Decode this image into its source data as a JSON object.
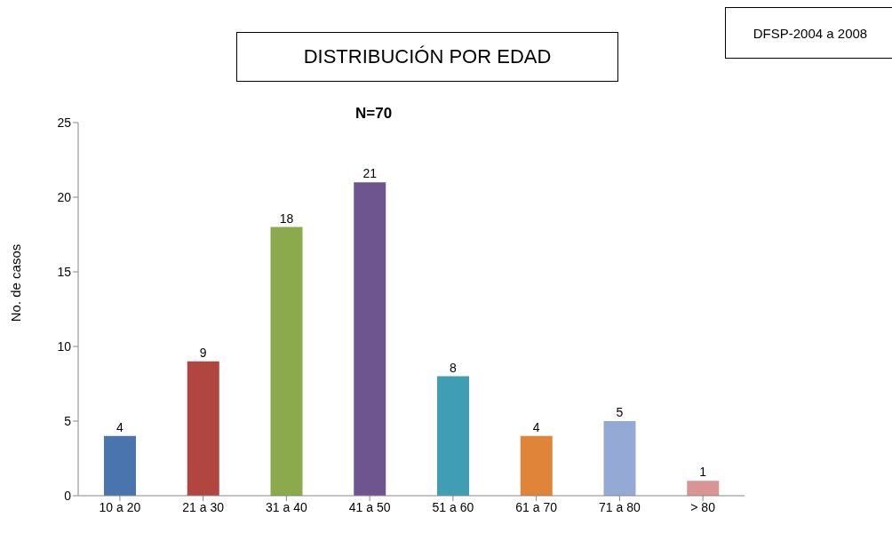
{
  "chart_data": {
    "type": "bar",
    "title": "DISTRIBUCIÓN POR EDAD",
    "subtitle": "N=70",
    "ylabel": "No. de casos",
    "annotations": [
      "DFSP-2004 a 2008"
    ],
    "categories": [
      "10 a 20",
      "21 a 30",
      "31 a 40",
      "41 a 50",
      "51 a 60",
      "61 a 70",
      "71 a 80",
      "> 80"
    ],
    "values": [
      4,
      9,
      18,
      21,
      8,
      4,
      5,
      1
    ],
    "colors": [
      "#4a74ae",
      "#b0463f",
      "#8aaa4c",
      "#6f5590",
      "#3f9db4",
      "#e0843a",
      "#94aad4",
      "#d99594"
    ],
    "ylim": [
      0,
      25
    ],
    "yticks": [
      0,
      5,
      10,
      15,
      20,
      25
    ],
    "data_labels": true,
    "grid": false,
    "legend": false
  }
}
